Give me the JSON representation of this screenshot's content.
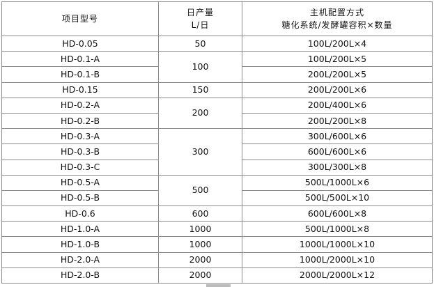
{
  "header": {
    "model": "项目型号",
    "daily_output": "日产量",
    "daily_output_unit": "L/日",
    "config": "主机配置方式",
    "config_sub": "糖化系统/发酵罐容积×数量"
  },
  "rows": [
    {
      "model": "HD-0.05",
      "output": "50",
      "config": "100L/200L×4"
    },
    {
      "model": "HD-0.1-A",
      "output": "100",
      "config": "100L/200L×5"
    },
    {
      "model": "HD-0.1-B",
      "config": "200L/200L×5"
    },
    {
      "model": "HD-0.15",
      "output": "150",
      "config": "200L/200L×6"
    },
    {
      "model": "HD-0.2-A",
      "output": "200",
      "config": "200L/400L×6"
    },
    {
      "model": "HD-0.2-B",
      "config": "200L/200L×8"
    },
    {
      "model": "HD-0.3-A",
      "output": "300",
      "config": "300L/600L×6"
    },
    {
      "model": "HD-0.3-B",
      "config": "600L/600L×6"
    },
    {
      "model": "HD-0.3-C",
      "config": "300L/300L×8"
    },
    {
      "model": "HD-0.5-A",
      "output": "500",
      "config": "500L/1000L×6"
    },
    {
      "model": "HD-0.5-B",
      "config": "500L/500L×10"
    },
    {
      "model": "HD-0.6",
      "output": "600",
      "config": "600L/600L×8"
    },
    {
      "model": "HD-1.0-A",
      "output": "1000",
      "config": "500L/1000L×8"
    },
    {
      "model": "HD-1.0-B",
      "output": "1000",
      "config": "1000L/1000L×10"
    },
    {
      "model": "HD-2.0-A",
      "output": "2000",
      "config": "1000L/2000L×10"
    },
    {
      "model": "HD-2.0-B",
      "output": "2000",
      "config": "2000L/2000L×12"
    }
  ]
}
